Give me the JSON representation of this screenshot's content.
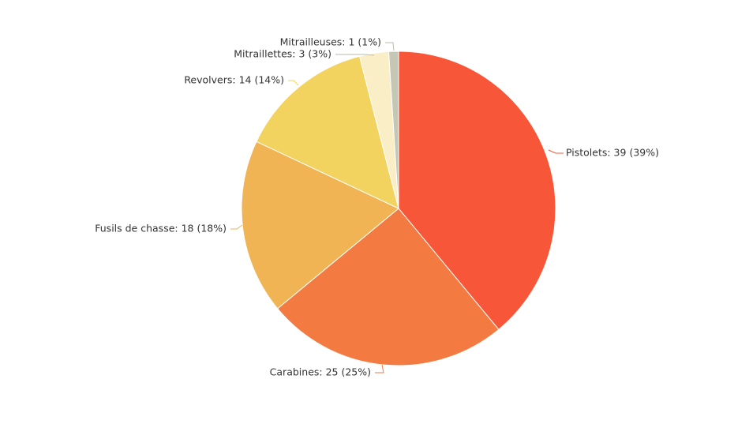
{
  "chart_data": {
    "type": "pie",
    "slices": [
      {
        "name": "Pistolets",
        "value": 39,
        "percent": 39,
        "label": "Pistolets: 39 (39%)",
        "color": "#f85638"
      },
      {
        "name": "Carabines",
        "value": 25,
        "percent": 25,
        "label": "Carabines: 25 (25%)",
        "color": "#f37a40"
      },
      {
        "name": "Fusils de chasse",
        "value": 18,
        "percent": 18,
        "label": "Fusils de chasse: 18 (18%)",
        "color": "#f0b455"
      },
      {
        "name": "Revolvers",
        "value": 14,
        "percent": 14,
        "label": "Revolvers: 14 (14%)",
        "color": "#f3d35f"
      },
      {
        "name": "Mitraillettes",
        "value": 3,
        "percent": 3,
        "label": "Mitraillettes: 3 (3%)",
        "color": "#faeec7"
      },
      {
        "name": "Mitrailleuses",
        "value": 1,
        "percent": 1,
        "label": "Mitrailleuses: 1 (1%)",
        "color": "#c4c7b5"
      }
    ],
    "start": "12 o'clock",
    "direction": "clockwise",
    "legend": "none"
  }
}
